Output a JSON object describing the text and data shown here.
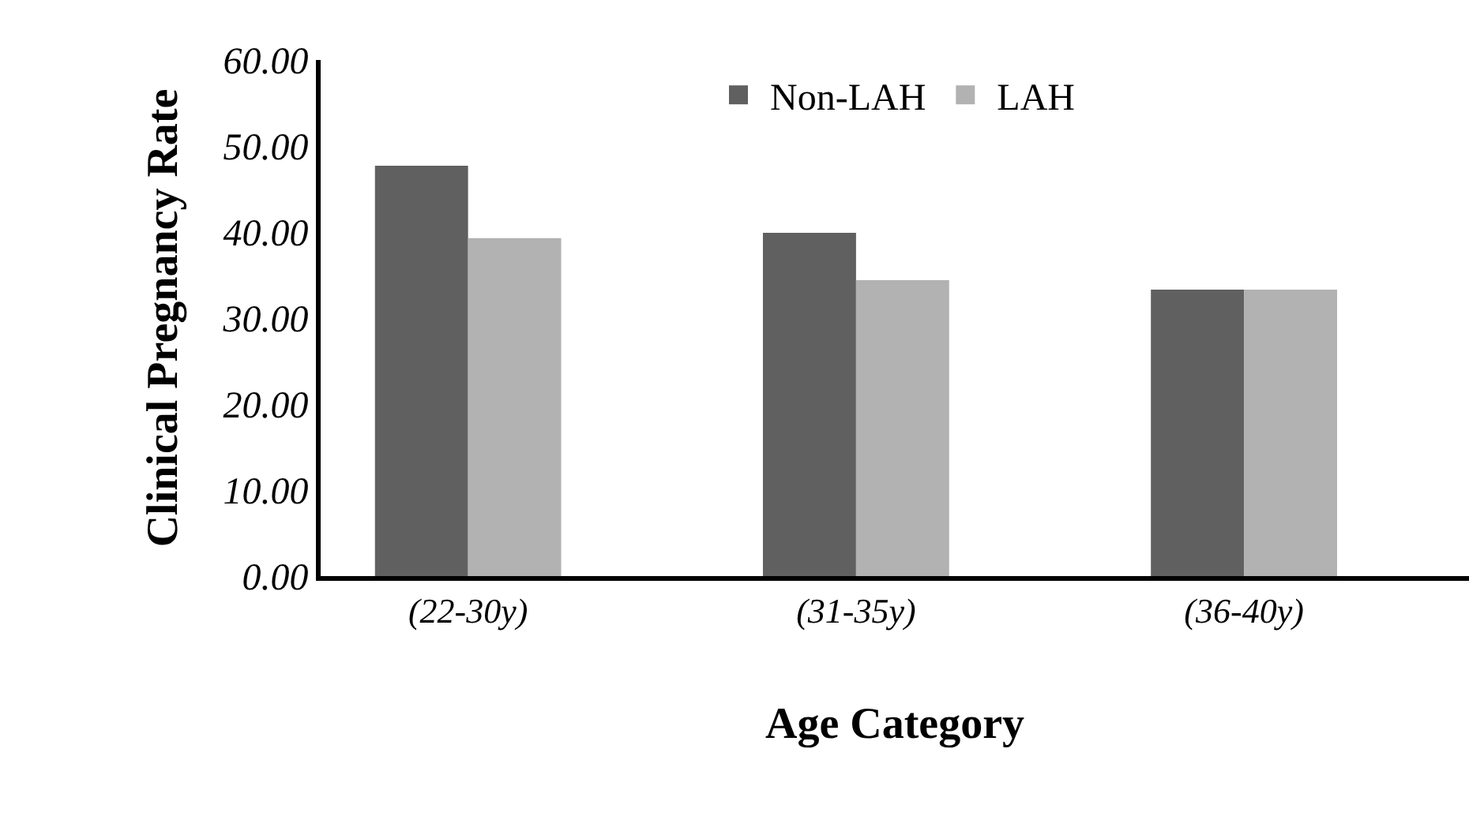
{
  "chart_data": {
    "type": "bar",
    "xlabel": "Age Category",
    "ylabel": "Clinical Pregnancy Rate",
    "categories": [
      "(22-30y)",
      "(31-35y)",
      "(36-40y)"
    ],
    "series": [
      {
        "name": "Non-LAH",
        "color": "#606060",
        "values": [
          47.7,
          39.9,
          33.3
        ]
      },
      {
        "name": "LAH",
        "color": "#b2b2b2",
        "values": [
          39.3,
          34.4,
          33.3
        ]
      }
    ],
    "ylim": [
      0,
      60
    ],
    "yticks": [
      {
        "value": 0,
        "label": "0.00"
      },
      {
        "value": 10,
        "label": "10.00"
      },
      {
        "value": 20,
        "label": "20.00"
      },
      {
        "value": 30,
        "label": "30.00"
      },
      {
        "value": 40,
        "label": "40.00"
      },
      {
        "value": 50,
        "label": "50.00"
      },
      {
        "value": 60,
        "label": "60.00"
      }
    ],
    "legend": "top"
  }
}
